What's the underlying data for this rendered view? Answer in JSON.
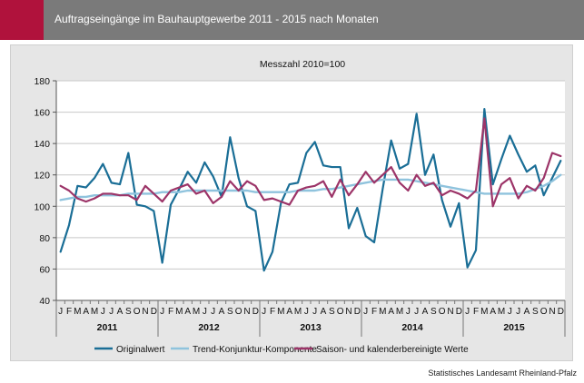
{
  "header": {
    "title": "Auftragseingänge im Bauhauptgewerbe 2011 - 2015 nach Monaten"
  },
  "source": "Statistisches Landesamt Rheinland-Pfalz",
  "colors": {
    "accent": "#b0123c",
    "header_bg": "#7a7a7a",
    "frame_bg": "#e6e6e6"
  },
  "chart_data": {
    "type": "line",
    "subtitle": "Messzahl 2010=100",
    "xlabel": "",
    "ylabel": "",
    "ylim": [
      40,
      180
    ],
    "yticks": [
      40,
      60,
      80,
      100,
      120,
      140,
      160,
      180
    ],
    "grid": true,
    "legend_position": "bottom",
    "month_labels": [
      "J",
      "F",
      "M",
      "A",
      "M",
      "J",
      "J",
      "A",
      "S",
      "O",
      "N",
      "D"
    ],
    "years": [
      "2011",
      "2012",
      "2013",
      "2014",
      "2015"
    ],
    "series": [
      {
        "name": "Originalwert",
        "color": "#1a6e96",
        "width": 2.2,
        "values": [
          71,
          88,
          113,
          112,
          118,
          127,
          115,
          114,
          134,
          101,
          100,
          97,
          64,
          101,
          111,
          122,
          115,
          128,
          119,
          106,
          144,
          118,
          100,
          97,
          59,
          71,
          102,
          114,
          115,
          134,
          141,
          126,
          125,
          125,
          86,
          99,
          81,
          77,
          111,
          142,
          124,
          127,
          159,
          120,
          133,
          104,
          87,
          102,
          61,
          72,
          162,
          114,
          130,
          145,
          133,
          122,
          126,
          107,
          118,
          129
        ]
      },
      {
        "name": "Trend-Konjunktur-Komponente",
        "color": "#8fc3dd",
        "width": 2.4,
        "values": [
          104,
          105,
          106,
          106,
          107,
          107,
          107,
          107,
          108,
          108,
          108,
          108,
          109,
          109,
          109,
          110,
          110,
          110,
          110,
          110,
          110,
          110,
          110,
          109,
          109,
          109,
          109,
          109,
          110,
          110,
          110,
          111,
          111,
          112,
          113,
          114,
          115,
          116,
          117,
          117,
          117,
          117,
          116,
          115,
          114,
          113,
          112,
          111,
          110,
          109,
          108,
          108,
          108,
          108,
          108,
          109,
          111,
          113,
          116,
          120
        ]
      },
      {
        "name": "Saison- und kalenderbereinigte Werte",
        "color": "#9c3468",
        "width": 2.2,
        "values": [
          113,
          110,
          105,
          103,
          105,
          108,
          108,
          107,
          107,
          104,
          113,
          108,
          103,
          110,
          112,
          114,
          108,
          110,
          102,
          106,
          116,
          110,
          116,
          113,
          104,
          105,
          103,
          101,
          110,
          112,
          113,
          116,
          106,
          117,
          107,
          114,
          122,
          115,
          120,
          125,
          115,
          110,
          120,
          113,
          115,
          107,
          110,
          108,
          105,
          110,
          156,
          100,
          114,
          118,
          105,
          113,
          110,
          118,
          134,
          132
        ]
      }
    ]
  }
}
